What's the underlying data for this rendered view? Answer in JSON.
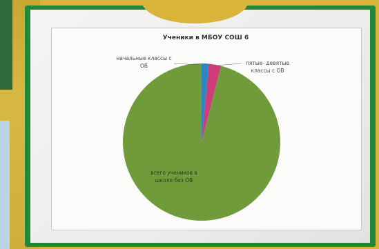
{
  "chart_data": {
    "type": "pie",
    "title": "Ученики в МБОУ СОШ 6",
    "slices": [
      {
        "label": "начальные классы с ОВ",
        "value": 1.5,
        "color": "#2f86c4"
      },
      {
        "label": "пятые- девятые классы с ОВ",
        "value": 2.5,
        "color": "#cc3d7a"
      },
      {
        "label": "всего учеников в школе без ОВ",
        "value": 96,
        "color": "#6f9b3a"
      }
    ]
  }
}
